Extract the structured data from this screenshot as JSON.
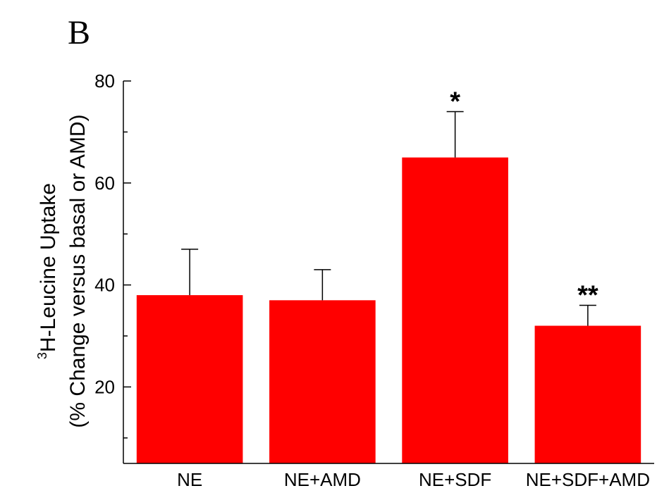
{
  "panel_label": "B",
  "chart_data": {
    "type": "bar",
    "categories": [
      "NE",
      "NE+AMD",
      "NE+SDF",
      "NE+SDF+AMD"
    ],
    "values": [
      38,
      37,
      65,
      32
    ],
    "errors": [
      9,
      6,
      9,
      4
    ],
    "annotations": [
      "",
      "",
      "*",
      "**"
    ],
    "ylabel_prefix_sup": "3",
    "ylabel_line1": "H-Leucine Uptake",
    "ylabel_line2": "(% Change versus basal or AMD)",
    "xlabel": "",
    "ylim": [
      5,
      80
    ],
    "yticks": [
      20,
      40,
      60,
      80
    ],
    "bar_color": "#ff0000",
    "grid": false,
    "legend": "none"
  }
}
